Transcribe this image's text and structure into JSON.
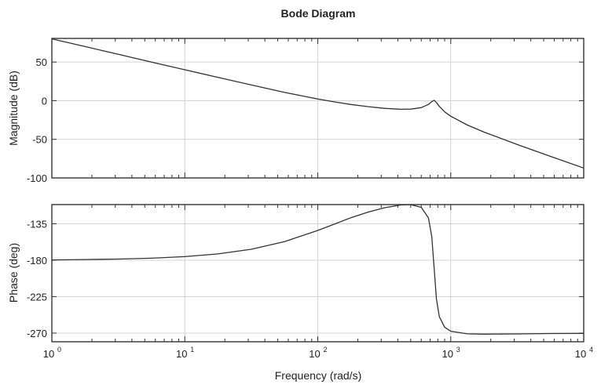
{
  "chart_data": {
    "type": "line",
    "title": "Bode Diagram",
    "xlabel": "Frequency (rad/s)",
    "xscale": "log",
    "xlim": [
      1,
      10000
    ],
    "xticks": [
      {
        "base": "10",
        "exp": "0"
      },
      {
        "base": "10",
        "exp": "1"
      },
      {
        "base": "10",
        "exp": "2"
      },
      {
        "base": "10",
        "exp": "3"
      },
      {
        "base": "10",
        "exp": "4"
      }
    ],
    "grid": true,
    "line_color": "#333333",
    "grid_color": "#d4d4d4",
    "x": [
      1,
      1.778,
      3.162,
      5.623,
      10,
      17.78,
      31.62,
      56.23,
      100,
      133.4,
      177.8,
      237.1,
      316.2,
      421.7,
      500,
      600,
      680,
      720,
      750,
      780,
      820,
      900,
      1000,
      1334,
      1778,
      3162,
      5623,
      10000
    ],
    "panels": [
      {
        "name": "magnitude",
        "ylabel": "Magnitude (dB)",
        "ylim": [
          -100,
          80.6
        ],
        "yticks": [
          "50",
          "0",
          "-50",
          "-100"
        ],
        "ytick_values": [
          50,
          0,
          -50,
          -100
        ],
        "values": [
          80,
          70,
          60,
          50,
          40.0,
          30.1,
          20.3,
          10.7,
          2.2,
          -1.6,
          -4.9,
          -7.7,
          -9.9,
          -11.1,
          -10.9,
          -9.0,
          -4.8,
          -1.2,
          0.4,
          -2.4,
          -7.4,
          -14.5,
          -20.1,
          -31.5,
          -40.6,
          -56.8,
          -72.1,
          -87.2
        ]
      },
      {
        "name": "phase",
        "ylabel": "Phase (deg)",
        "ylim": [
          -280.7,
          -111.3
        ],
        "yticks": [
          "-135",
          "-180",
          "-225",
          "-270"
        ],
        "ytick_values": [
          -135,
          -180,
          -225,
          -270
        ],
        "values": [
          -179.6,
          -179.2,
          -178.6,
          -177.5,
          -175.6,
          -172.2,
          -166.5,
          -157.0,
          -143.2,
          -135.4,
          -127.5,
          -120.7,
          -115.3,
          -111.8,
          -111.4,
          -114.7,
          -127.8,
          -151.0,
          -189.8,
          -227.6,
          -249.8,
          -262.9,
          -267.7,
          -270.9,
          -271.3,
          -271.0,
          -270.5,
          -270.3
        ]
      }
    ]
  }
}
